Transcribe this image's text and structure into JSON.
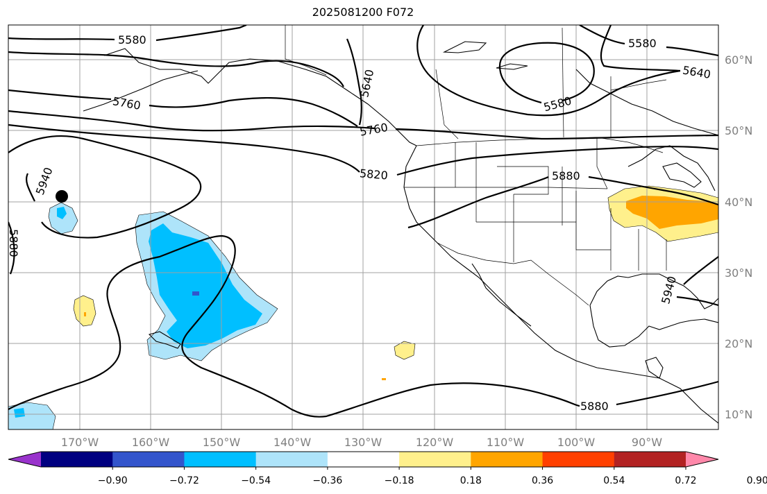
{
  "title": "2025081200 F072",
  "lon_labels": [
    "170°W",
    "160°W",
    "150°W",
    "140°W",
    "130°W",
    "120°W",
    "110°W",
    "100°W",
    "90°W"
  ],
  "lat_labels": [
    "60°N",
    "50°N",
    "40°N",
    "30°N",
    "20°N",
    "10°N"
  ],
  "contour_labels": [
    "5580",
    "5580",
    "5580",
    "5640",
    "5640",
    "5760",
    "5760",
    "5820",
    "5880",
    "5880",
    "5880",
    "5940",
    "5940"
  ],
  "colorbar": {
    "ticks": [
      "−0.90",
      "−0.72",
      "−0.54",
      "−0.36",
      "−0.18",
      "0.18",
      "0.36",
      "0.54",
      "0.72",
      "0.90"
    ],
    "colors": [
      "#9933cc",
      "#000080",
      "#3355cc",
      "#00bfff",
      "#aee4fa",
      "#ffffff",
      "#fff08c",
      "#ffa500",
      "#ff4000",
      "#b22222",
      "#ff88aa"
    ]
  },
  "marker": "black-dot"
}
